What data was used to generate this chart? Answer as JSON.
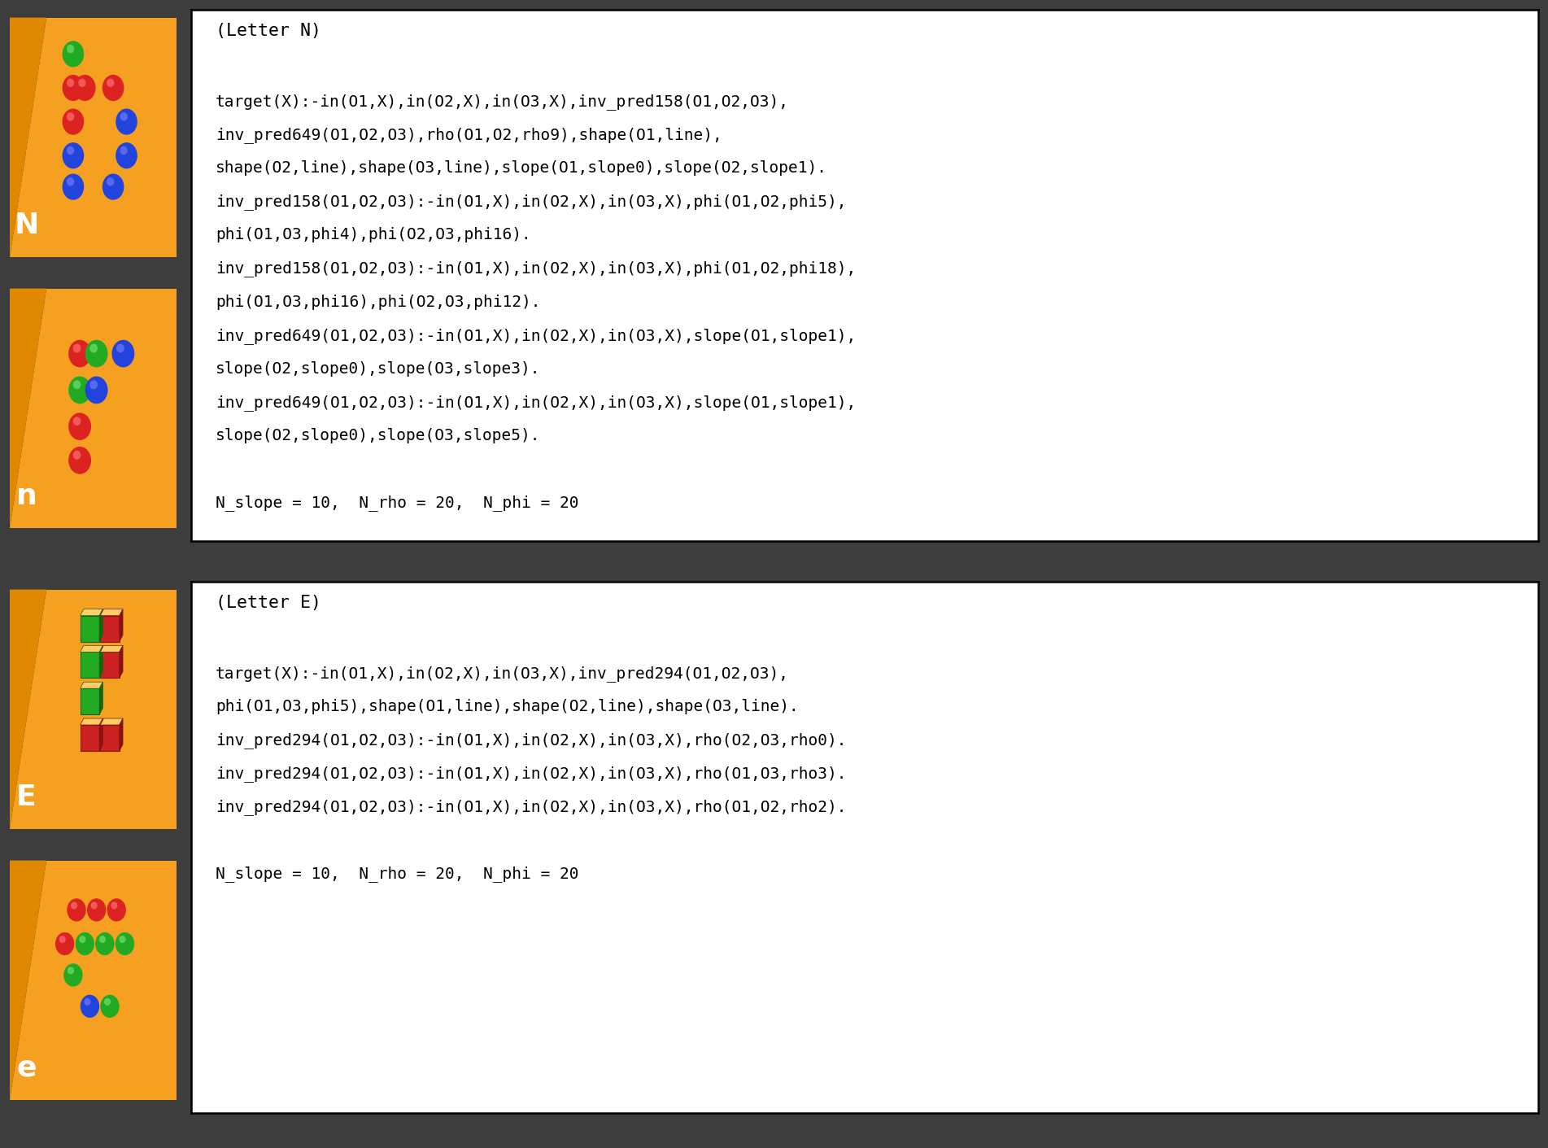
{
  "bg_color": "#3d3d3d",
  "orange_color": "#f5a020",
  "text_color": "#000000",
  "N_title": "(Letter N)",
  "N_text_lines": [
    "",
    "target(X):-in(O1,X),in(O2,X),in(O3,X),inv_pred158(O1,O2,O3),",
    "inv_pred649(O1,O2,O3),rho(O1,O2,rho9),shape(O1,line),",
    "shape(O2,line),shape(O3,line),slope(O1,slope0),slope(O2,slope1).",
    "inv_pred158(O1,O2,O3):-in(O1,X),in(O2,X),in(O3,X),phi(O1,O2,phi5),",
    "phi(O1,O3,phi4),phi(O2,O3,phi16).",
    "inv_pred158(O1,O2,O3):-in(O1,X),in(O2,X),in(O3,X),phi(O1,O2,phi18),",
    "phi(O1,O3,phi16),phi(O2,O3,phi12).",
    "inv_pred649(O1,O2,O3):-in(O1,X),in(O2,X),in(O3,X),slope(O1,slope1),",
    "slope(O2,slope0),slope(O3,slope3).",
    "inv_pred649(O1,O2,O3):-in(O1,X),in(O2,X),in(O3,X),slope(O1,slope1),",
    "slope(O2,slope0),slope(O3,slope5).",
    "",
    "N_slope = 10,  N_rho = 20,  N_phi = 20"
  ],
  "E_title": "(Letter E)",
  "E_text_lines": [
    "",
    "target(X):-in(O1,X),in(O2,X),in(O3,X),inv_pred294(O1,O2,O3),",
    "phi(O1,O3,phi5),shape(O1,line),shape(O2,line),shape(O3,line).",
    "inv_pred294(O1,O2,O3):-in(O1,X),in(O2,X),in(O3,X),rho(O2,O3,rho0).",
    "inv_pred294(O1,O2,O3):-in(O1,X),in(O2,X),in(O3,X),rho(O1,O3,rho3).",
    "inv_pred294(O1,O2,O3):-in(O1,X),in(O2,X),in(O3,X),rho(O1,O2,rho2).",
    "",
    "N_slope = 10,  N_rho = 20,  N_phi = 20"
  ]
}
